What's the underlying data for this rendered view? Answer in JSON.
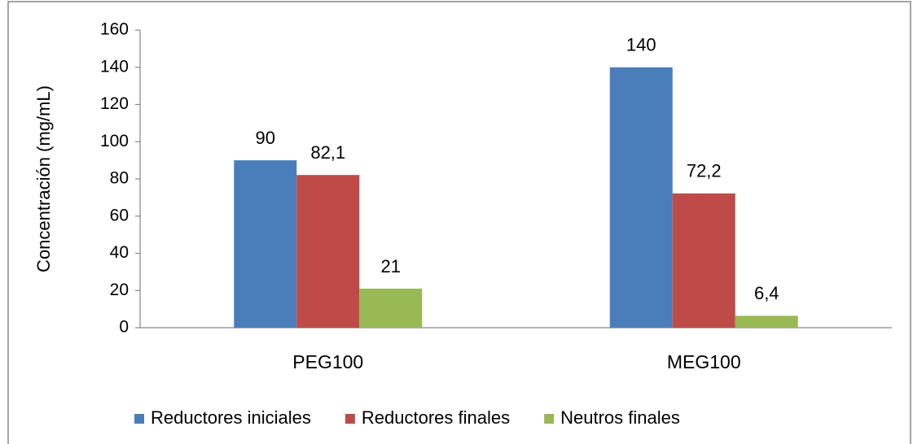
{
  "chart_data": {
    "type": "bar",
    "y_label": "Concentración (mg/mL)",
    "categories": [
      "PEG100",
      "MEG100"
    ],
    "series": [
      {
        "name": "Reductores iniciales",
        "color": "#4a7ebb",
        "values": [
          90,
          140
        ],
        "value_labels": [
          "90",
          "140"
        ]
      },
      {
        "name": "Reductores finales",
        "color": "#be4b48",
        "values": [
          82.1,
          72.2
        ],
        "value_labels": [
          "82,1",
          "72,2"
        ]
      },
      {
        "name": "Neutros finales",
        "color": "#98b954",
        "values": [
          21,
          6.4
        ],
        "value_labels": [
          "21",
          "6,4"
        ]
      }
    ],
    "ylim": [
      0,
      160
    ],
    "yticks": [
      0,
      20,
      40,
      60,
      80,
      100,
      120,
      140,
      160
    ],
    "grid": false,
    "legend": "bottom"
  }
}
